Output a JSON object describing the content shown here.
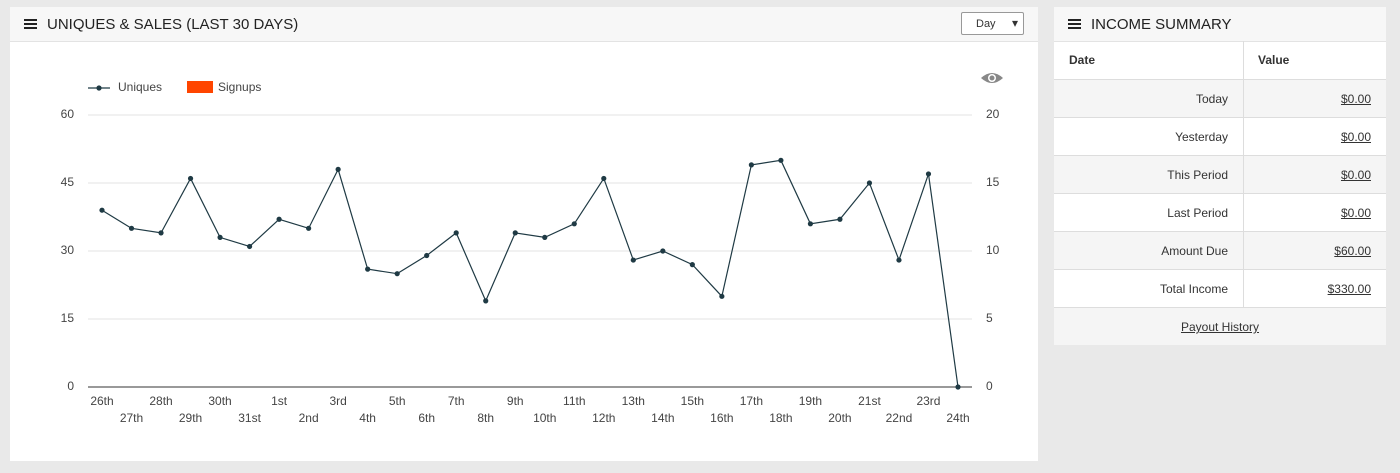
{
  "panel": {
    "title": "UNIQUES & SALES (LAST 30 DAYS)",
    "select": "Day"
  },
  "chart_data": {
    "type": "line",
    "categories": [
      "26th",
      "27th",
      "28th",
      "29th",
      "30th",
      "31st",
      "1st",
      "2nd",
      "3rd",
      "4th",
      "5th",
      "6th",
      "7th",
      "8th",
      "9th",
      "10th",
      "11th",
      "12th",
      "13th",
      "14th",
      "15th",
      "16th",
      "17th",
      "18th",
      "19th",
      "20th",
      "21st",
      "22nd",
      "23rd",
      "24th"
    ],
    "series": [
      {
        "name": "Uniques",
        "color": "#1f3a44",
        "values": [
          39,
          35,
          34,
          46,
          33,
          31,
          37,
          35,
          48,
          26,
          25,
          29,
          34,
          19,
          34,
          33,
          36,
          46,
          28,
          30,
          27,
          20,
          49,
          50,
          36,
          37,
          45,
          28,
          47,
          0
        ]
      },
      {
        "name": "Signups",
        "type": "bar",
        "axis": "y2",
        "color": "#ff4500",
        "values": [
          0,
          0,
          0,
          0,
          0,
          0,
          0,
          0,
          0,
          0,
          0,
          0,
          0,
          0,
          0,
          0,
          0,
          0,
          0,
          0,
          0,
          0,
          0,
          0,
          0,
          0,
          0,
          0,
          0,
          0
        ]
      }
    ],
    "ylim": [
      0,
      60
    ],
    "yticks": [
      0,
      15,
      30,
      45,
      60
    ],
    "y2lim": [
      0,
      20
    ],
    "y2ticks": [
      0,
      5,
      10,
      15,
      20
    ],
    "grid": true,
    "legend": "top-left"
  },
  "income": {
    "title": "INCOME SUMMARY",
    "columns": [
      "Date",
      "Value"
    ],
    "rows": [
      [
        "Today",
        "$0.00"
      ],
      [
        "Yesterday",
        "$0.00"
      ],
      [
        "This Period",
        "$0.00"
      ],
      [
        "Last Period",
        "$0.00"
      ],
      [
        "Amount Due",
        "$60.00"
      ],
      [
        "Total Income",
        "$330.00"
      ]
    ],
    "footer": "Payout History"
  }
}
